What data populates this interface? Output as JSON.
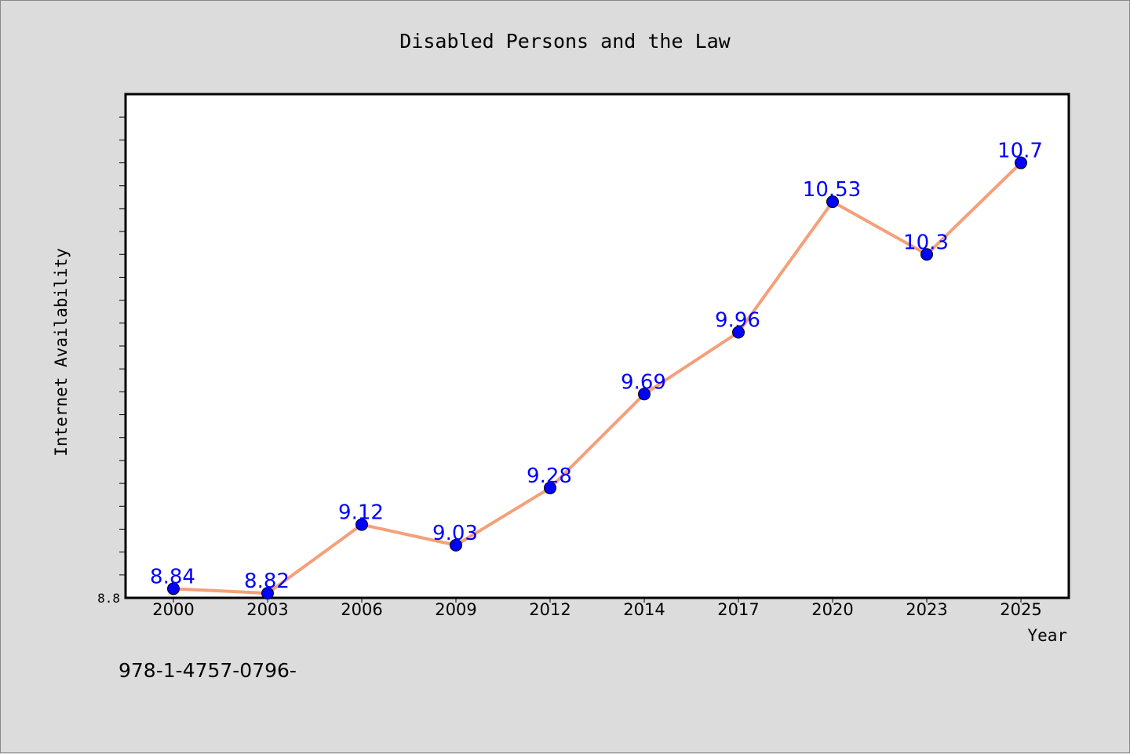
{
  "chart_data": {
    "type": "line",
    "title": "Disabled Persons and the Law",
    "xlabel": "Year",
    "ylabel": "Internet Availability",
    "categories": [
      "2000",
      "2003",
      "2006",
      "2009",
      "2012",
      "2014",
      "2017",
      "2020",
      "2023",
      "2025"
    ],
    "series": [
      {
        "values": [
          8.84,
          8.82,
          9.12,
          9.03,
          9.28,
          9.69,
          9.96,
          10.53,
          10.3,
          10.7
        ],
        "labels": [
          "8.84",
          "8.82",
          "9.12",
          "9.03",
          "9.28",
          "9.69",
          "9.96",
          "10.53",
          "10.3",
          "10.7"
        ]
      }
    ],
    "ylim": [
      8.8,
      11.0
    ],
    "ytick_labels": [
      "8.8"
    ],
    "grid": false,
    "line_color": "#f4a07a",
    "marker_color": "#0000ff",
    "label_color": "#0000ff"
  },
  "footer_text": "978-1-4757-0796-"
}
